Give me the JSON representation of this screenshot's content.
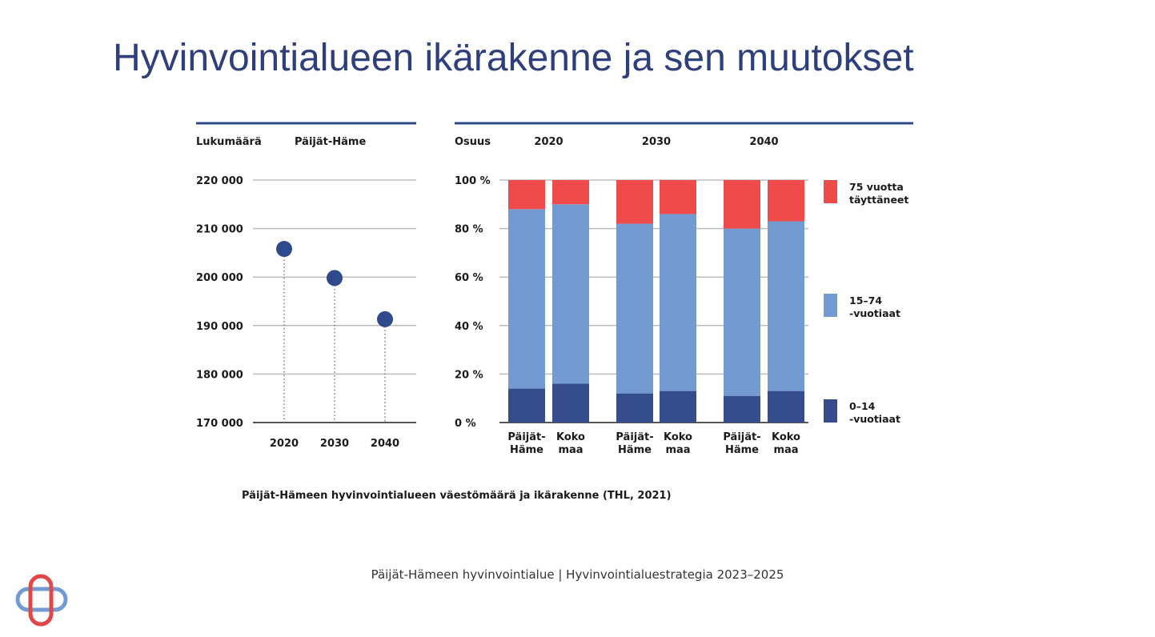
{
  "slide": {
    "title": "Hyvinvointialueen ikärakenne ja sen muutokset",
    "footer": "Päijät-Hämeen hyvinvointialue  |  Hyvinvointialuestrategia 2023–2025"
  },
  "colors": {
    "navy": "#2f4a8a",
    "dark_blue": "#354d8c",
    "light_blue": "#739bd2",
    "red": "#ef4b4b",
    "title": "#2f3f7c"
  },
  "logo": {
    "icon": "wellbeing-cross-logo-icon"
  },
  "chart_data": [
    {
      "type": "scatter",
      "header_left": "Lukumäärä",
      "header_right": "Päijät-Häme",
      "x": [
        "2020",
        "2030",
        "2040"
      ],
      "y": [
        205800,
        199800,
        191300
      ],
      "yticks": [
        "220 000",
        "210 000",
        "200 000",
        "190 000",
        "180 000",
        "170 000"
      ],
      "ylim": [
        170000,
        220000
      ],
      "grid": true
    },
    {
      "type": "bar",
      "stacked": true,
      "header_left": "Osuus",
      "groups": [
        "2020",
        "2030",
        "2040"
      ],
      "categories": [
        {
          "line1": "Päijät-",
          "line2": "Häme"
        },
        {
          "line1": "Koko",
          "line2": "maa"
        },
        {
          "line1": "Päijät-",
          "line2": "Häme"
        },
        {
          "line1": "Koko",
          "line2": "maa"
        },
        {
          "line1": "Päijät-",
          "line2": "Häme"
        },
        {
          "line1": "Koko",
          "line2": "maa"
        }
      ],
      "series": [
        {
          "legend1": "0–14",
          "legend2": "-vuotiaat",
          "values": [
            14,
            16,
            12,
            13,
            11,
            13
          ]
        },
        {
          "legend1": "15–74",
          "legend2": "-vuotiaat",
          "values": [
            74,
            74,
            70,
            73,
            69,
            70
          ]
        },
        {
          "legend1": "75 vuotta",
          "legend2": "täyttäneet",
          "values": [
            12,
            10,
            18,
            14,
            20,
            17
          ]
        }
      ],
      "yticks": [
        "100 %",
        "80 %",
        "60 %",
        "40 %",
        "20 %",
        "0 %"
      ],
      "ylim": [
        0,
        100
      ],
      "legend_position": "right",
      "grid": true
    }
  ],
  "caption": "Päijät-Hämeen hyvinvointialueen väestömäärä ja ikärakenne (THL, 2021)"
}
